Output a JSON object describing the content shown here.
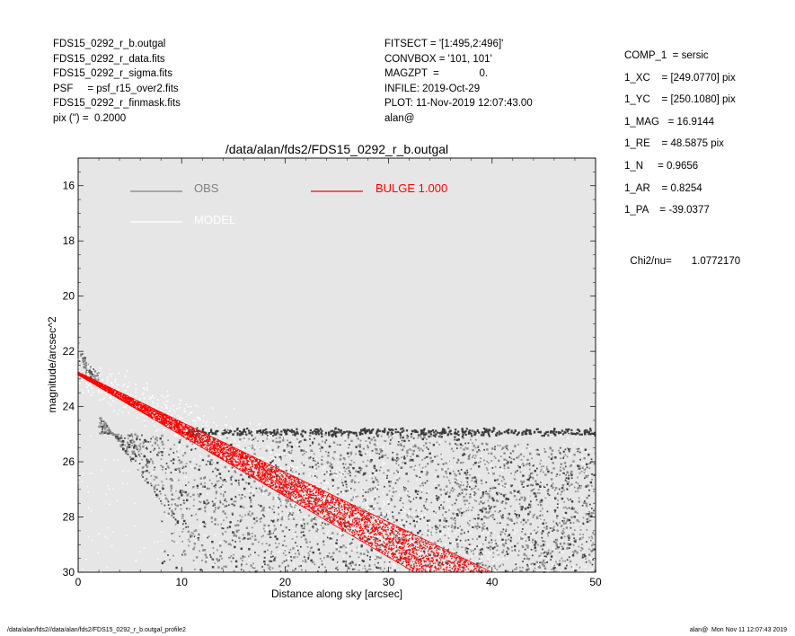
{
  "header_left": [
    "FDS15_0292_r_b.outgal",
    "FDS15_0292_r_data.fits",
    "FDS15_0292_r_sigma.fits",
    "PSF     = psf_r15_over2.fits",
    "FDS15_0292_r_finmask.fits",
    "pix (\") =  0.2000"
  ],
  "header_middle": [
    "FITSECT = '[1:495,2:496]'",
    "CONVBOX = '101, 101'",
    "MAGZPT  =              0.",
    "INFILE: 2019-Oct-29",
    "PLOT: 11-Nov-2019 12:07:43.00",
    "alan@"
  ],
  "header_right": [
    "COMP_1  = sersic",
    "1_XC    = [249.0770] pix",
    "1_YC    = [250.1080] pix",
    "1_MAG   = 16.9144",
    "1_RE    = 48.5875 pix",
    "1_N     = 0.9656",
    "1_AR    = 0.8254",
    "1_PA    = -39.0377"
  ],
  "chi2": {
    "label": "Chi2/nu=",
    "value": "1.0772170"
  },
  "footer": {
    "left": "/data/alan/fds2//data/alan/fds2/FDS15_0292_r_b.outgal_profile2",
    "right": "alan@  Mon Nov 11 12:07:43 2019"
  },
  "chart_data": {
    "type": "scatter",
    "title": "/data/alan/fds2/FDS15_0292_r_b.outgal",
    "xlabel": "Distance along sky [arcsec]",
    "ylabel": "magnitude/arcsec^2",
    "xlim": [
      0,
      50
    ],
    "ylim": [
      30,
      15
    ],
    "y_inverted": true,
    "x_ticks": [
      0,
      10,
      20,
      30,
      40,
      50
    ],
    "y_ticks": [
      16,
      18,
      20,
      22,
      24,
      26,
      28,
      30
    ],
    "grid": false,
    "background": "#e6e6e6",
    "legend": [
      {
        "label": "OBS",
        "color": "#808080",
        "position": "top-left"
      },
      {
        "label": "MODEL",
        "color": "#ffffff",
        "position": "top-left"
      },
      {
        "label": "BULGE  1.000",
        "color": "#ff0000",
        "position": "top-center"
      }
    ],
    "series": [
      {
        "name": "OBS",
        "color": "#808080",
        "profile": [
          {
            "x": 0.0,
            "y": 21.8
          },
          {
            "x": 0.5,
            "y": 22.3
          },
          {
            "x": 1.0,
            "y": 22.7
          },
          {
            "x": 2.0,
            "y": 23.1
          },
          {
            "x": 5.0,
            "y": 23.6
          },
          {
            "x": 10.0,
            "y": 24.3
          },
          {
            "x": 15.0,
            "y": 24.8
          },
          {
            "x": 20.0,
            "y": 25.3
          },
          {
            "x": 30.0,
            "y": 26.0
          },
          {
            "x": 40.0,
            "y": 26.5
          },
          {
            "x": 50.0,
            "y": 26.8
          }
        ],
        "background_level": 25.0
      },
      {
        "name": "MODEL",
        "color": "#ffffff",
        "profile": [
          {
            "x": 0.0,
            "y": 22.8
          },
          {
            "x": 10.0,
            "y": 24.6
          },
          {
            "x": 20.0,
            "y": 26.5
          },
          {
            "x": 30.0,
            "y": 28.5
          },
          {
            "x": 40.0,
            "y": 30.2
          }
        ]
      },
      {
        "name": "BULGE  1.000",
        "color": "#ff0000",
        "band_upper": [
          {
            "x": 0.0,
            "y": 22.75
          },
          {
            "x": 40.0,
            "y": 30.0
          }
        ],
        "band_lower": [
          {
            "x": 0.0,
            "y": 22.85
          },
          {
            "x": 32.5,
            "y": 30.0
          }
        ]
      }
    ]
  }
}
